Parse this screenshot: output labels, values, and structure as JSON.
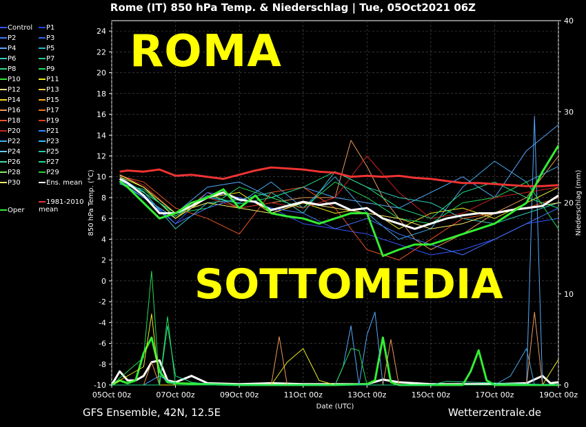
{
  "title": "Rome  (IT)  850 hPa Temp. & Niederschlag | Tue, 05Oct2021 06Z",
  "footer_left": "GFS Ensemble, 42N, 12.5E",
  "footer_right": "Wetterzentrale.de",
  "overlay_top": "ROMA",
  "overlay_bottom": "SOTTOMEDIA",
  "legend": [
    {
      "label": "Control",
      "color": "#3355ff"
    },
    {
      "label": "P1",
      "color": "#2244dd"
    },
    {
      "label": "P2",
      "color": "#4477ff"
    },
    {
      "label": "P3",
      "color": "#3366ee"
    },
    {
      "label": "P4",
      "color": "#55aaff"
    },
    {
      "label": "P5",
      "color": "#22bbcc"
    },
    {
      "label": "P6",
      "color": "#33ccbb"
    },
    {
      "label": "P7",
      "color": "#22cc99"
    },
    {
      "label": "P8",
      "color": "#33dd88"
    },
    {
      "label": "P9",
      "color": "#22dd55"
    },
    {
      "label": "P10",
      "color": "#33ee33"
    },
    {
      "label": "P11",
      "color": "#eeee22"
    },
    {
      "label": "P12",
      "color": "#eedd88"
    },
    {
      "label": "P13",
      "color": "#ffcc44"
    },
    {
      "label": "P14",
      "color": "#ffdd22"
    },
    {
      "label": "P15",
      "color": "#ffaa22"
    },
    {
      "label": "P16",
      "color": "#ee9955"
    },
    {
      "label": "P17",
      "color": "#ee7722"
    },
    {
      "label": "P18",
      "color": "#ee5522"
    },
    {
      "label": "P19",
      "color": "#dd4411"
    },
    {
      "label": "P20",
      "color": "#cc2222"
    },
    {
      "label": "P21",
      "color": "#3388ff"
    },
    {
      "label": "P22",
      "color": "#44aaee"
    },
    {
      "label": "P23",
      "color": "#33bbff"
    },
    {
      "label": "P24",
      "color": "#66ccee"
    },
    {
      "label": "P25",
      "color": "#22ccaa"
    },
    {
      "label": "P26",
      "color": "#44ddaa"
    },
    {
      "label": "P27",
      "color": "#22dd88"
    },
    {
      "label": "P28",
      "color": "#88ee66"
    },
    {
      "label": "P29",
      "color": "#33cc33"
    },
    {
      "label": "P30",
      "color": "#ffee66"
    },
    {
      "label": "Ens. mean",
      "color": "#ffffff"
    },
    {
      "label": "1981-2010 mean",
      "color": "#ee3333"
    },
    {
      "label": "Oper",
      "color": "#33ee33"
    }
  ],
  "chart_data": {
    "type": "line",
    "title": "Rome  (IT)  850 hPa Temp. & Niederschlag | Tue, 05Oct2021 06Z",
    "xlabel": "Date (UTC)",
    "ylabel": "850 hPa Temp. (°C)",
    "y2label": "Niederschlag (mm)",
    "ylim": [
      -10,
      25
    ],
    "y2lim": [
      0,
      40
    ],
    "yticks": [
      "24",
      "22",
      "20",
      "18",
      "16",
      "14",
      "12",
      "10",
      "8",
      "6",
      "4",
      "2",
      "0",
      "-2",
      "-4",
      "-6",
      "-8",
      "-10"
    ],
    "y2ticks": [
      "40",
      "30",
      "20",
      "10",
      "0"
    ],
    "xticks": [
      "05Oct 00z",
      "07Oct 00z",
      "09Oct 00z",
      "11Oct 00z",
      "13Oct 00z",
      "15Oct 00z",
      "17Oct 00z",
      "19Oct 00z"
    ],
    "x_days": [
      0,
      14
    ],
    "grid": true,
    "series": [
      {
        "name": "Ens. mean",
        "color": "#ffffff",
        "width": 3,
        "x": [
          0.25,
          0.5,
          1,
          1.5,
          2,
          2.5,
          3,
          3.5,
          4,
          4.5,
          5,
          5.5,
          6,
          6.5,
          7,
          7.5,
          8,
          8.5,
          9,
          9.5,
          10,
          10.5,
          11,
          11.5,
          12,
          12.5,
          13,
          13.5,
          14
        ],
        "y": [
          9.8,
          9.4,
          8.2,
          6.5,
          6.5,
          7.2,
          8.0,
          8.5,
          7.8,
          7.6,
          6.8,
          7.2,
          7.6,
          7.3,
          7.5,
          6.8,
          7.0,
          6.0,
          5.5,
          5.0,
          5.5,
          6.0,
          6.3,
          6.5,
          6.5,
          6.8,
          7.0,
          7.2,
          8.2
        ]
      },
      {
        "name": "1981-2010 mean",
        "color": "#ee3333",
        "width": 3,
        "x": [
          0.25,
          0.5,
          1,
          1.5,
          2,
          2.5,
          3,
          3.5,
          4,
          4.5,
          5,
          5.5,
          6,
          6.5,
          7,
          7.5,
          8,
          8.5,
          9,
          9.5,
          10,
          10.5,
          11,
          11.5,
          12,
          12.5,
          13,
          13.5,
          14
        ],
        "y": [
          10.5,
          10.6,
          10.5,
          10.7,
          10.1,
          10.2,
          10.0,
          9.8,
          10.2,
          10.6,
          10.9,
          10.8,
          10.7,
          10.5,
          10.4,
          10.0,
          10.1,
          10.0,
          10.1,
          9.9,
          9.8,
          9.6,
          9.4,
          9.4,
          9.3,
          9.2,
          9.1,
          9.1,
          9.2
        ]
      },
      {
        "name": "Oper",
        "color": "#33ee33",
        "width": 3,
        "x": [
          0.25,
          0.5,
          1,
          1.5,
          2,
          2.5,
          3,
          3.5,
          4,
          4.5,
          5,
          5.5,
          6,
          6.5,
          7,
          7.5,
          8,
          8.5,
          9,
          9.5,
          10,
          10.5,
          11,
          11.5,
          12,
          12.5,
          13,
          13.5,
          14
        ],
        "y": [
          9.6,
          9.0,
          7.5,
          6.0,
          6.5,
          7.5,
          8.0,
          8.8,
          7.0,
          8.2,
          6.5,
          6.2,
          6.0,
          5.5,
          6.0,
          6.5,
          6.5,
          2.4,
          3.0,
          3.5,
          3.5,
          4.0,
          4.5,
          5.0,
          5.5,
          6.5,
          7.5,
          10.5,
          13.0
        ]
      },
      {
        "name": "P16",
        "color": "#ee9955",
        "width": 1,
        "x": [
          0.25,
          1,
          2,
          3,
          4,
          5,
          6,
          7,
          7.5,
          8,
          8.5,
          9,
          9.5,
          10,
          11,
          12,
          13,
          14
        ],
        "y": [
          9.5,
          8.0,
          6.0,
          8.5,
          7.0,
          7.5,
          8.0,
          8.0,
          13.5,
          11.0,
          8.0,
          6.0,
          4.0,
          3.0,
          4.5,
          6.5,
          8.0,
          12.0
        ]
      },
      {
        "name": "P4",
        "color": "#55aaff",
        "width": 1,
        "x": [
          0.25,
          1,
          2,
          3,
          4,
          5,
          6,
          7,
          8,
          9,
          10,
          11,
          12,
          13,
          14
        ],
        "y": [
          10.0,
          8.5,
          6.5,
          9.0,
          9.5,
          8.0,
          9.0,
          8.0,
          7.5,
          7.0,
          8.5,
          10.0,
          8.0,
          12.5,
          15.0
        ]
      },
      {
        "name": "P22",
        "color": "#44aaee",
        "width": 1,
        "x": [
          0.25,
          1,
          2,
          3,
          4,
          5,
          6,
          7,
          8,
          9,
          10,
          11,
          12,
          13,
          14
        ],
        "y": [
          9.6,
          8.0,
          6.0,
          8.0,
          7.5,
          9.5,
          7.0,
          10.0,
          6.5,
          4.0,
          5.0,
          9.0,
          11.5,
          9.5,
          11.0
        ]
      },
      {
        "name": "Control",
        "color": "#3355ff",
        "width": 1,
        "x": [
          0.25,
          1,
          2,
          3,
          4,
          5,
          6,
          7,
          8,
          9,
          10,
          11,
          12,
          13,
          14
        ],
        "y": [
          9.7,
          8.3,
          5.5,
          8.5,
          8.0,
          7.0,
          5.5,
          5.0,
          4.5,
          3.5,
          2.5,
          3.0,
          4.0,
          5.5,
          6.0
        ]
      },
      {
        "name": "P11",
        "color": "#eeee22",
        "width": 1,
        "x": [
          0.25,
          1,
          2,
          3,
          4,
          5,
          6,
          7,
          8,
          9,
          10,
          11,
          12,
          13,
          14
        ],
        "y": [
          10.0,
          9.0,
          6.0,
          8.0,
          8.5,
          6.5,
          7.5,
          6.5,
          7.0,
          5.0,
          6.5,
          7.0,
          6.0,
          7.5,
          9.0
        ]
      },
      {
        "name": "P9",
        "color": "#22dd55",
        "width": 1,
        "x": [
          0.25,
          1,
          2,
          3,
          4,
          5,
          6,
          7,
          8,
          9,
          10,
          11,
          12,
          13,
          14
        ],
        "y": [
          9.5,
          8.5,
          6.5,
          7.0,
          9.0,
          8.0,
          7.0,
          9.5,
          8.0,
          6.0,
          5.5,
          7.5,
          8.0,
          9.5,
          5.0
        ]
      },
      {
        "name": "P20",
        "color": "#cc2222",
        "width": 1,
        "x": [
          0.25,
          1,
          2,
          3,
          4,
          5,
          6,
          7,
          8,
          9,
          10,
          11,
          12,
          13,
          14
        ],
        "y": [
          10.2,
          9.2,
          6.5,
          8.0,
          7.0,
          7.5,
          7.0,
          8.0,
          12.0,
          8.5,
          6.0,
          6.5,
          8.0,
          8.5,
          9.0
        ]
      },
      {
        "name": "P6",
        "color": "#33ccbb",
        "width": 1,
        "x": [
          0.25,
          1,
          2,
          3,
          4,
          5,
          6,
          7,
          8,
          9,
          10,
          11,
          12,
          13,
          14
        ],
        "y": [
          9.8,
          8.6,
          5.0,
          7.5,
          7.8,
          8.5,
          6.5,
          10.5,
          9.0,
          8.0,
          7.5,
          6.0,
          5.5,
          6.5,
          7.5
        ]
      },
      {
        "name": "P18",
        "color": "#ee5522",
        "width": 1,
        "x": [
          0.25,
          1,
          2,
          3,
          4,
          5,
          6,
          7,
          8,
          9,
          10,
          11,
          12,
          13,
          14
        ],
        "y": [
          10.1,
          9.5,
          7.0,
          6.0,
          4.5,
          8.5,
          9.0,
          7.0,
          3.0,
          2.0,
          4.0,
          6.0,
          6.5,
          7.0,
          8.0
        ]
      },
      {
        "name": "P30",
        "color": "#ffee66",
        "width": 1,
        "x": [
          0.25,
          1,
          2,
          3,
          4,
          5,
          6,
          7,
          8,
          9,
          10,
          11,
          12,
          13,
          14
        ],
        "y": [
          10.2,
          9.0,
          6.5,
          7.5,
          7.0,
          6.5,
          7.5,
          7.0,
          6.5,
          6.0,
          5.0,
          5.5,
          6.5,
          7.0,
          7.5
        ]
      },
      {
        "name": "P2",
        "color": "#4477ff",
        "width": 1,
        "x": [
          0.25,
          1,
          2,
          3,
          4,
          5,
          6,
          7,
          8,
          9,
          10,
          11,
          12,
          13,
          14
        ],
        "y": [
          9.4,
          8.0,
          5.5,
          7.0,
          8.0,
          7.0,
          6.5,
          5.0,
          6.0,
          4.5,
          3.5,
          2.5,
          4.0,
          5.5,
          7.0
        ]
      },
      {
        "name": "P27",
        "color": "#22dd88",
        "width": 1,
        "x": [
          0.25,
          1,
          2,
          3,
          4,
          5,
          6,
          7,
          8,
          9,
          10,
          11,
          12,
          13,
          14
        ],
        "y": [
          9.3,
          8.8,
          6.2,
          8.2,
          7.4,
          8.0,
          9.0,
          10.5,
          9.0,
          7.0,
          6.0,
          8.5,
          9.5,
          8.0,
          7.0
        ]
      }
    ],
    "precip_series": [
      {
        "name": "Ens. mean",
        "color": "#ffffff",
        "width": 3,
        "x": [
          0,
          0.25,
          0.5,
          0.75,
          1,
          1.25,
          1.5,
          1.75,
          2,
          2.5,
          3,
          4,
          5,
          6,
          7,
          8,
          8.5,
          9,
          9.5,
          10,
          11,
          12,
          13,
          13.5,
          13.75,
          14
        ],
        "y": [
          0,
          1.5,
          0.5,
          0.5,
          1.0,
          2.5,
          2.7,
          0.5,
          0.3,
          1.0,
          0.2,
          0.1,
          0.2,
          0.1,
          0.1,
          0.1,
          0.6,
          0.3,
          0.2,
          0.1,
          0.1,
          0.1,
          0.2,
          1.0,
          0.2,
          0.3
        ]
      },
      {
        "name": "Oper",
        "color": "#33ee33",
        "width": 3,
        "x": [
          0,
          0.25,
          0.5,
          0.75,
          1,
          1.25,
          1.5,
          1.75,
          2,
          3,
          4,
          5,
          6,
          7,
          8,
          8.25,
          8.5,
          8.75,
          9,
          10,
          11,
          11.25,
          11.5,
          11.75,
          12,
          13,
          14
        ],
        "y": [
          0,
          0.5,
          0.2,
          0.5,
          3.5,
          5.2,
          1.5,
          0.3,
          0.2,
          0.1,
          0,
          0,
          0,
          0,
          0.1,
          0.5,
          5.2,
          0.3,
          0,
          0,
          0,
          1.5,
          3.8,
          0.5,
          0,
          0,
          0
        ]
      },
      {
        "name": "P4",
        "color": "#55aaff",
        "width": 1,
        "x": [
          0,
          1,
          1.5,
          2,
          6,
          7,
          7.25,
          7.5,
          7.75,
          8,
          8.25,
          8.5,
          9,
          13,
          13.25,
          13.5,
          13.75,
          14
        ],
        "y": [
          0,
          0,
          1,
          0,
          0,
          0,
          2,
          6.5,
          0,
          5.5,
          8.0,
          0,
          0,
          0,
          29.5,
          0,
          0,
          0
        ]
      },
      {
        "name": "P22",
        "color": "#44aaee",
        "width": 1,
        "x": [
          0,
          12,
          12.5,
          13,
          13.25,
          13.5,
          13.75,
          14
        ],
        "y": [
          0,
          0,
          1.0,
          4.0,
          0,
          0,
          0,
          0
        ]
      },
      {
        "name": "P16",
        "color": "#ee9955",
        "width": 1,
        "x": [
          0,
          1,
          1.25,
          1.5,
          5,
          5.25,
          5.5,
          8.5,
          8.75,
          9,
          13,
          13.25,
          13.5,
          14
        ],
        "y": [
          0,
          0,
          2.5,
          0,
          0,
          5.3,
          0,
          0,
          5.0,
          0,
          0,
          8.0,
          0,
          0
        ]
      },
      {
        "name": "P11",
        "color": "#eeee22",
        "width": 1,
        "x": [
          0,
          1,
          1.25,
          1.5,
          5,
          5.5,
          6,
          6.5,
          7,
          13,
          13.5,
          14
        ],
        "y": [
          0,
          2,
          7.8,
          0,
          0,
          2.5,
          4.0,
          0.5,
          0,
          0,
          0,
          2.8
        ]
      },
      {
        "name": "P9",
        "color": "#22dd55",
        "width": 1,
        "x": [
          0,
          1,
          1.25,
          1.5,
          1.75,
          2,
          7,
          7.5,
          7.75,
          8,
          9,
          14
        ],
        "y": [
          0,
          3,
          12.5,
          0,
          7.5,
          0,
          0,
          4.0,
          3.8,
          0,
          0,
          0
        ]
      },
      {
        "name": "P27",
        "color": "#22dd88",
        "width": 1,
        "x": [
          0,
          1.5,
          1.75,
          2,
          2.5,
          3,
          4,
          5,
          10,
          10.5,
          14
        ],
        "y": [
          0,
          0,
          6.5,
          1,
          0.3,
          0.1,
          0,
          0,
          0,
          0.4,
          0
        ]
      }
    ]
  }
}
